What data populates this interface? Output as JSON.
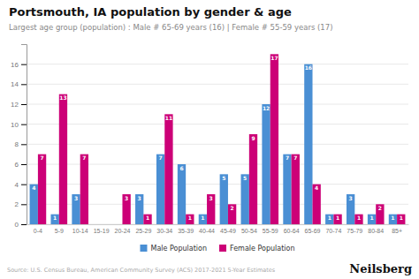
{
  "chart_data": {
    "type": "bar",
    "title": "Portsmouth, IA population by gender & age",
    "subtitle": "Largest age group (population) : Male # 65-69 years (16) | Female # 55-59 years (17)",
    "annotations": [
      "Source: U.S. Census Bureau, American Community Survey (ACS) 2017-2021 5-Year Estimates",
      "Neilsberg"
    ],
    "categories": [
      "0-4",
      "5-9",
      "10-14",
      "15-19",
      "20-24",
      "25-29",
      "30-34",
      "35-39",
      "40-44",
      "45-49",
      "50-54",
      "55-59",
      "60-64",
      "65-69",
      "70-74",
      "75-79",
      "80-84",
      "85+"
    ],
    "series": [
      {
        "name": "Male Population",
        "color": "#4a8fd4",
        "values": [
          4,
          1,
          3,
          0,
          0,
          3,
          7,
          6,
          1,
          5,
          5,
          12,
          7,
          16,
          1,
          3,
          1,
          1
        ]
      },
      {
        "name": "Female Population",
        "color": "#cc0077",
        "values": [
          7,
          13,
          7,
          0,
          3,
          1,
          11,
          1,
          3,
          2,
          9,
          17,
          7,
          4,
          1,
          1,
          2,
          1
        ]
      }
    ],
    "ylim": [
      0,
      18
    ],
    "yticks": [
      0,
      2,
      4,
      6,
      8,
      10,
      12,
      14,
      16
    ],
    "grid": true,
    "legend": "bottom",
    "data_labels": true
  }
}
